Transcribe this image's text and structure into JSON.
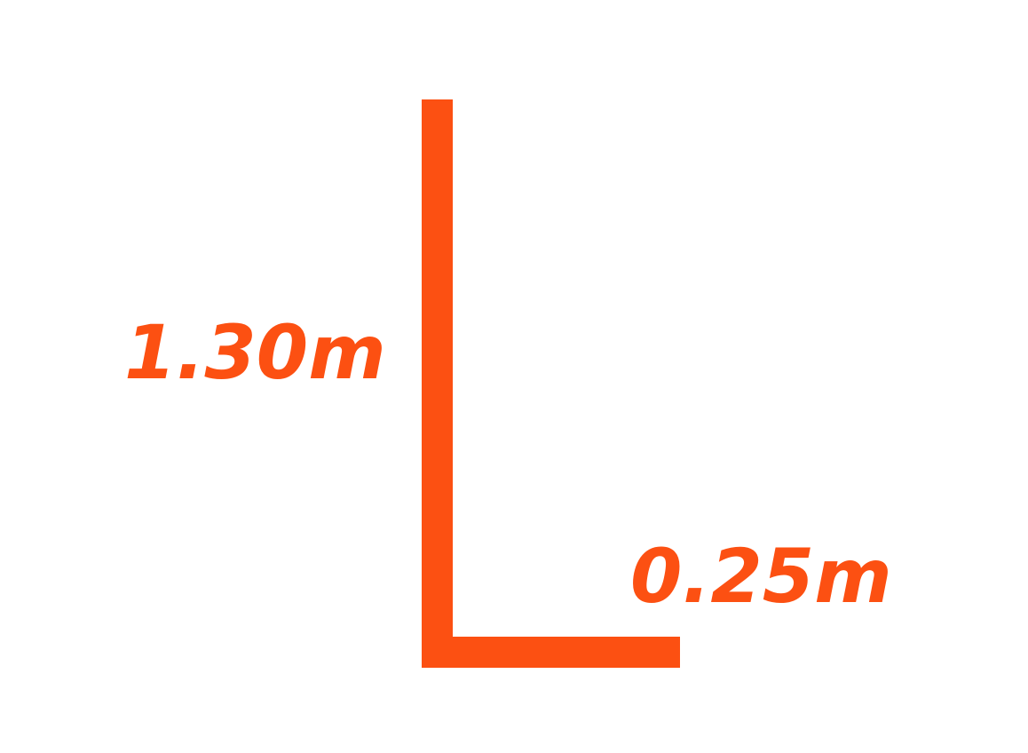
{
  "colors": {
    "accent": "#fc5012",
    "background": "#ffffff"
  },
  "diagram": {
    "shape": "L-bracket",
    "vertical_dimension_label": "1.30m",
    "horizontal_dimension_label": "0.25m"
  }
}
